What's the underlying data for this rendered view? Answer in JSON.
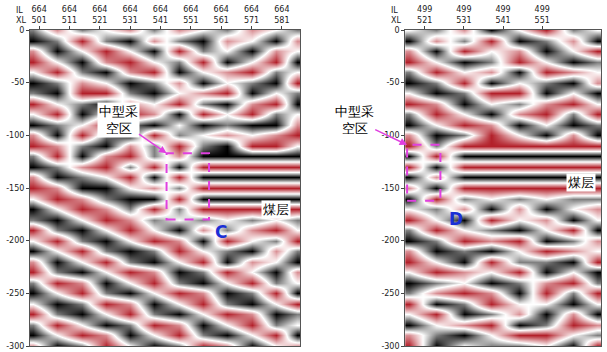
{
  "chart_data": [
    {
      "type": "heatmap",
      "axis_rows": [
        "IL",
        "XL"
      ],
      "il": 664,
      "xlim": [
        498,
        587
      ],
      "ylim": [
        -300,
        0
      ],
      "xticks": [
        501,
        511,
        521,
        531,
        541,
        551,
        561,
        571,
        581
      ],
      "yticks": [
        0,
        -50,
        -100,
        -150,
        -200,
        -250,
        -300
      ],
      "zlim": [
        -2,
        2
      ],
      "colors": [
        "#b3202a",
        "#ffffff",
        "#000000"
      ],
      "x": [
        499,
        507,
        515,
        523,
        531,
        539,
        547,
        555,
        563,
        571,
        579,
        586
      ],
      "y": [
        0,
        -10,
        -20,
        -30,
        -40,
        -50,
        -60,
        -70,
        -80,
        -90,
        -100,
        -110,
        -120,
        -130,
        -140,
        -150,
        -160,
        -170,
        -180,
        -190,
        -200,
        -210,
        -220,
        -230,
        -240,
        -250,
        -260,
        -270,
        -280,
        -290,
        -300
      ],
      "z": [
        [
          1,
          -1,
          1,
          0,
          -1,
          1,
          -1,
          0,
          1,
          -1,
          0,
          1
        ],
        [
          2,
          1,
          -2,
          1,
          2,
          -1,
          1,
          2,
          -1,
          0,
          2,
          -1
        ],
        [
          -1,
          2,
          0,
          -2,
          0,
          2,
          -2,
          1,
          0,
          2,
          -1,
          0
        ],
        [
          -2,
          0,
          2,
          -1,
          -2,
          0,
          1,
          -2,
          2,
          0,
          -2,
          2
        ],
        [
          0,
          -2,
          1,
          2,
          -1,
          -2,
          2,
          0,
          -1,
          -2,
          1,
          0
        ],
        [
          2,
          1,
          -1,
          0,
          2,
          1,
          -1,
          2,
          0,
          1,
          2,
          -2
        ],
        [
          1,
          2,
          -2,
          -2,
          1,
          2,
          0,
          -1,
          -2,
          2,
          0,
          1
        ],
        [
          -2,
          0,
          1,
          2,
          -1,
          0,
          -2,
          1,
          2,
          -1,
          -2,
          2
        ],
        [
          0,
          -2,
          2,
          0,
          -2,
          -1,
          2,
          -2,
          0,
          -2,
          1,
          0
        ],
        [
          2,
          1,
          0,
          -2,
          1,
          2,
          0,
          2,
          1,
          2,
          2,
          -1
        ],
        [
          -1,
          2,
          -2,
          1,
          2,
          -2,
          1,
          0,
          -1,
          0,
          -1,
          -2
        ],
        [
          -2,
          -1,
          1,
          2,
          -1,
          1,
          -2,
          1,
          2,
          -2,
          -2,
          0
        ],
        [
          1,
          -2,
          2,
          -1,
          -2,
          1,
          -1,
          2,
          2,
          2,
          2,
          2
        ],
        [
          2,
          1,
          -1,
          -2,
          1,
          -2,
          2,
          -2,
          -2,
          -2,
          -2,
          -2
        ],
        [
          -1,
          2,
          1,
          0,
          -2,
          2,
          -2,
          2,
          2,
          2,
          2,
          2
        ],
        [
          -2,
          -1,
          2,
          2,
          0,
          -1,
          1,
          -2,
          -2,
          -2,
          -2,
          -2
        ],
        [
          0,
          -2,
          -1,
          1,
          2,
          2,
          -2,
          2,
          2,
          2,
          2,
          2
        ],
        [
          2,
          0,
          -2,
          -1,
          1,
          -2,
          1,
          -2,
          -2,
          -2,
          -2,
          -2
        ],
        [
          1,
          2,
          0,
          -2,
          -1,
          1,
          0,
          1,
          0,
          1,
          0,
          1
        ],
        [
          -2,
          1,
          2,
          0,
          -2,
          0,
          2,
          -1,
          1,
          -1,
          -2,
          0
        ],
        [
          0,
          -2,
          1,
          2,
          0,
          -2,
          -1,
          2,
          -2,
          0,
          1,
          -2
        ],
        [
          2,
          0,
          -2,
          1,
          2,
          1,
          -2,
          0,
          1,
          2,
          -1,
          1
        ],
        [
          -1,
          2,
          0,
          -2,
          1,
          2,
          0,
          -2,
          2,
          -1,
          0,
          2
        ],
        [
          -2,
          1,
          2,
          0,
          -2,
          -1,
          2,
          1,
          -2,
          0,
          2,
          -1
        ],
        [
          1,
          -2,
          -1,
          2,
          0,
          -2,
          1,
          2,
          0,
          -2,
          1,
          0
        ],
        [
          2,
          0,
          -2,
          1,
          2,
          0,
          -2,
          -1,
          2,
          1,
          -2,
          2
        ],
        [
          0,
          2,
          1,
          -2,
          -1,
          2,
          0,
          -2,
          1,
          2,
          0,
          -2
        ],
        [
          -2,
          1,
          2,
          0,
          -2,
          1,
          2,
          0,
          -2,
          -1,
          2,
          1
        ],
        [
          1,
          -2,
          0,
          2,
          1,
          -2,
          -1,
          2,
          0,
          -2,
          1,
          0
        ],
        [
          2,
          0,
          -2,
          -1,
          2,
          0,
          -2,
          1,
          2,
          0,
          -2,
          2
        ],
        [
          -1,
          2,
          1,
          -2,
          0,
          2,
          1,
          -2,
          -1,
          2,
          0,
          -1
        ]
      ],
      "label": {
        "lines": [
          "中型采",
          "空区"
        ],
        "x": 527,
        "y": -85
      },
      "box": {
        "x0": 543,
        "x1": 557,
        "y0": -180,
        "y1": -117
      },
      "seam": {
        "text": "煤层",
        "x": 579,
        "y": -170
      },
      "mark": {
        "text": "C",
        "x": 561,
        "y": -192
      }
    },
    {
      "type": "heatmap",
      "axis_rows": [
        "IL",
        "XL"
      ],
      "il": 499,
      "xlim": [
        516,
        566
      ],
      "ylim": [
        -300,
        0
      ],
      "xticks": [
        521,
        531,
        541,
        551
      ],
      "yticks": [
        0,
        -50,
        -100,
        -150,
        -200,
        -250,
        -300
      ],
      "zlim": [
        -2,
        2
      ],
      "colors": [
        "#b3202a",
        "#ffffff",
        "#000000"
      ],
      "x": [
        517,
        524,
        531,
        538,
        545,
        552,
        559,
        565
      ],
      "y": [
        0,
        -10,
        -20,
        -30,
        -40,
        -50,
        -60,
        -70,
        -80,
        -90,
        -100,
        -110,
        -120,
        -130,
        -140,
        -150,
        -160,
        -170,
        -180,
        -190,
        -200,
        -210,
        -220,
        -230,
        -240,
        -250,
        -260,
        -270,
        -280,
        -290,
        -300
      ],
      "z": [
        [
          0,
          1,
          -1,
          2,
          0,
          -2,
          1,
          0
        ],
        [
          2,
          -1,
          1,
          -2,
          2,
          1,
          -1,
          2
        ],
        [
          -1,
          2,
          -2,
          0,
          -1,
          2,
          0,
          -2
        ],
        [
          -2,
          0,
          2,
          1,
          -2,
          0,
          2,
          1
        ],
        [
          1,
          -2,
          0,
          -1,
          2,
          -2,
          -1,
          0
        ],
        [
          2,
          1,
          -2,
          2,
          0,
          1,
          2,
          -1
        ],
        [
          0,
          2,
          1,
          -2,
          -2,
          2,
          0,
          2
        ],
        [
          -2,
          -1,
          2,
          0,
          1,
          -1,
          -2,
          0
        ],
        [
          1,
          -2,
          0,
          2,
          -1,
          -2,
          1,
          -2
        ],
        [
          2,
          0,
          -2,
          -1,
          2,
          0,
          2,
          1
        ],
        [
          -1,
          2,
          1,
          -2,
          0,
          2,
          -1,
          2
        ],
        [
          -2,
          1,
          -2,
          -2,
          -2,
          -2,
          -2,
          -2
        ],
        [
          2,
          -2,
          2,
          2,
          2,
          2,
          2,
          2
        ],
        [
          -2,
          2,
          -2,
          -2,
          -2,
          -2,
          -2,
          -2
        ],
        [
          2,
          -1,
          2,
          2,
          2,
          2,
          2,
          2
        ],
        [
          -1,
          2,
          -2,
          -2,
          -2,
          -2,
          -2,
          -2
        ],
        [
          2,
          -2,
          1,
          0,
          1,
          0,
          1,
          1
        ],
        [
          0,
          1,
          -1,
          2,
          -1,
          2,
          0,
          -1
        ],
        [
          -2,
          0,
          2,
          -2,
          0,
          -1,
          2,
          0
        ],
        [
          1,
          -2,
          0,
          1,
          2,
          0,
          -2,
          2
        ],
        [
          2,
          1,
          -2,
          -1,
          -2,
          2,
          1,
          -1
        ],
        [
          -1,
          2,
          1,
          2,
          0,
          -2,
          -1,
          0
        ],
        [
          -2,
          0,
          2,
          -2,
          1,
          1,
          2,
          -2
        ],
        [
          0,
          -2,
          -1,
          0,
          -2,
          2,
          0,
          2
        ],
        [
          2,
          1,
          0,
          2,
          1,
          -1,
          -2,
          1
        ],
        [
          1,
          -1,
          -2,
          -1,
          2,
          -2,
          1,
          -2
        ],
        [
          -2,
          2,
          1,
          -2,
          0,
          0,
          2,
          0
        ],
        [
          0,
          -2,
          2,
          1,
          -1,
          2,
          -1,
          2
        ],
        [
          2,
          0,
          -1,
          -2,
          2,
          1,
          -2,
          -1
        ],
        [
          -1,
          1,
          2,
          0,
          -2,
          -2,
          0,
          1
        ],
        [
          -2,
          2,
          0,
          1,
          1,
          0,
          2,
          -2
        ]
      ],
      "label": {
        "lines": [
          "中型采",
          "空区"
        ],
        "x": 503,
        "y": -85
      },
      "box": {
        "x0": 516.5,
        "x1": 525,
        "y0": -162,
        "y1": -109
      },
      "seam": {
        "text": "煤层",
        "x": 561,
        "y": -145
      },
      "mark": {
        "text": "D",
        "x": 529,
        "y": -179
      }
    }
  ]
}
